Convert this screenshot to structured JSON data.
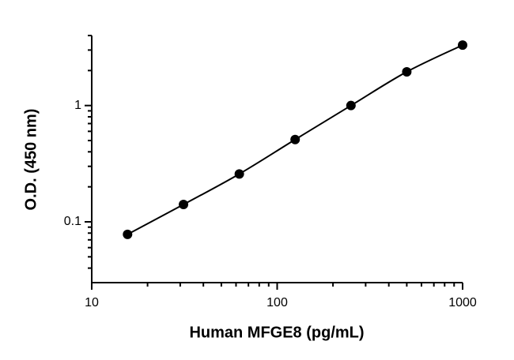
{
  "chart_data": {
    "type": "scatter",
    "x_label": "Human MFGE8 (pg/mL)",
    "y_label": "O.D. (450 nm)",
    "log_x": true,
    "log_y": true,
    "x": [
      15.6,
      31.25,
      62.5,
      125,
      250,
      500,
      1000
    ],
    "series": [
      {
        "color": "#000000",
        "values": [
          0.078,
          0.141,
          0.258,
          0.51,
          1.0,
          1.95,
          3.31
        ]
      }
    ],
    "fit_line": true,
    "xlim": [
      10,
      1000
    ],
    "ylim": [
      0.03,
      4
    ],
    "xticks": [
      10,
      100,
      1000
    ],
    "yticks": [
      0.1,
      1
    ],
    "xminorticks": [
      20,
      30,
      40,
      50,
      60,
      70,
      80,
      90,
      200,
      300,
      400,
      500,
      600,
      700,
      800,
      900
    ],
    "yminorticks": [
      0.04,
      0.05,
      0.06,
      0.07,
      0.08,
      0.09,
      0.2,
      0.3,
      0.4,
      0.5,
      0.6,
      0.7,
      0.8,
      0.9,
      2,
      3,
      4
    ]
  }
}
